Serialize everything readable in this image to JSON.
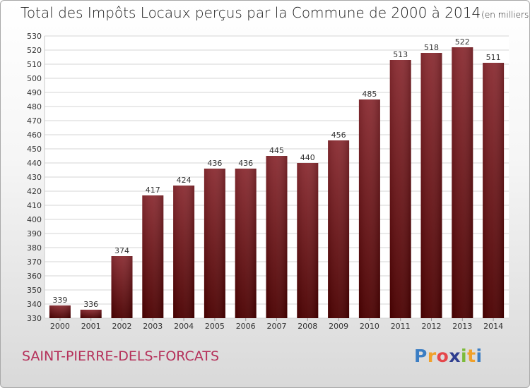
{
  "chart_data": {
    "type": "bar",
    "title": "Total des Impôts Locaux perçus par la Commune de 2000 à 2014",
    "unit_label": "(en milliers d'€)",
    "categories": [
      "2000",
      "2001",
      "2002",
      "2003",
      "2004",
      "2005",
      "2006",
      "2007",
      "2008",
      "2009",
      "2010",
      "2011",
      "2012",
      "2013",
      "2014"
    ],
    "values": [
      339,
      336,
      374,
      417,
      424,
      436,
      436,
      445,
      440,
      456,
      485,
      513,
      518,
      522,
      511
    ],
    "data_labels": [
      "339",
      "336",
      "374",
      "417",
      "424",
      "436",
      "436",
      "445",
      "440",
      "456",
      "485",
      "513",
      "518",
      "522",
      "511"
    ],
    "ylim": [
      330,
      530
    ],
    "yticks": [
      "330",
      "340",
      "350",
      "360",
      "370",
      "380",
      "390",
      "400",
      "410",
      "420",
      "430",
      "440",
      "450",
      "460",
      "470",
      "480",
      "490",
      "500",
      "510",
      "520",
      "530"
    ],
    "xlabel": "",
    "ylabel": "",
    "grid": true,
    "bar_color": "#8b1a1a"
  },
  "footer": {
    "commune": "SAINT-PIERRE-DELS-FORCATS",
    "logo_letters": [
      "P",
      "r",
      "o",
      "x",
      "i",
      "t",
      "i"
    ],
    "logo_colors": [
      "#3b7ec4",
      "#f0a12a",
      "#e5474b",
      "#2f3e8f",
      "#7cbb3a",
      "#f0a12a",
      "#3b7ec4"
    ]
  }
}
